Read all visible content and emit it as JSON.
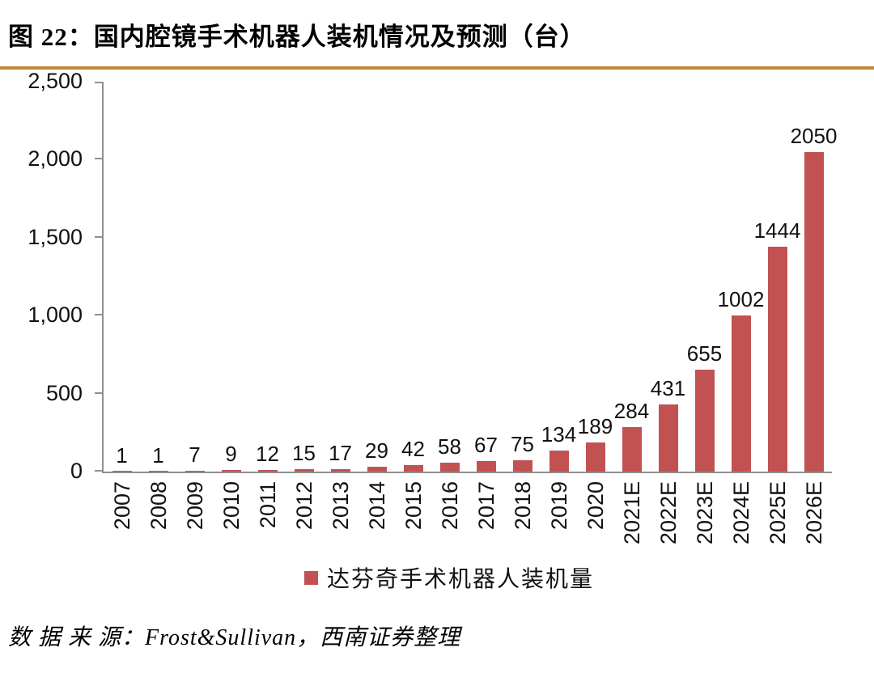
{
  "figure": {
    "title": "图 22：国内腔镜手术机器人装机情况及预测（台）",
    "source": "数 据 来 源：Frost&Sullivan，西南证券整理",
    "accent_line_color": "#c08a3a",
    "axis_color": "#8f8f8f"
  },
  "legend": {
    "label": "达芬奇手术机器人装机量"
  },
  "chart_data": {
    "type": "bar",
    "title": "国内腔镜手术机器人装机情况及预测（台）",
    "categories": [
      "2007",
      "2008",
      "2009",
      "2010",
      "2011",
      "2012",
      "2013",
      "2014",
      "2015",
      "2016",
      "2017",
      "2018",
      "2019",
      "2020",
      "2021E",
      "2022E",
      "2023E",
      "2024E",
      "2025E",
      "2026E"
    ],
    "values": [
      1,
      1,
      7,
      9,
      12,
      15,
      17,
      29,
      42,
      58,
      67,
      75,
      134,
      189,
      284,
      431,
      655,
      1002,
      1444,
      2050
    ],
    "series_name": "达芬奇手术机器人装机量",
    "bar_color": "#c25252",
    "xlabel": "",
    "ylabel": "",
    "ylim": [
      0,
      2500
    ],
    "ytick_interval": 500,
    "yticks": [
      "0",
      "500",
      "1,000",
      "1,500",
      "2,000",
      "2,500"
    ],
    "grid": false,
    "data_labels": true,
    "legend_position": "bottom"
  }
}
